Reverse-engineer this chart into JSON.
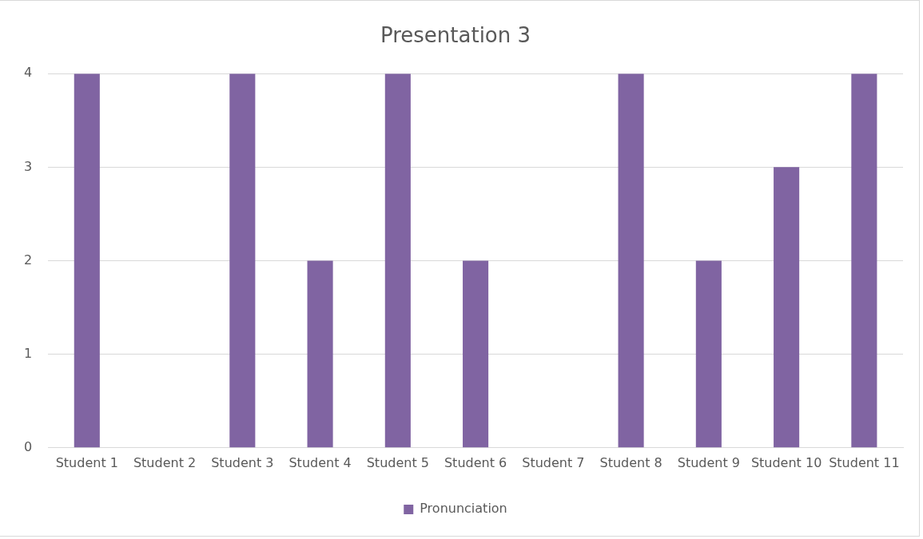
{
  "chart_data": {
    "type": "bar",
    "title": "Presentation 3",
    "categories": [
      "Student 1",
      "Student 2",
      "Student 3",
      "Student 4",
      "Student 5",
      "Student 6",
      "Student 7",
      "Student 8",
      "Student 9",
      "Student 10",
      "Student 11"
    ],
    "series": [
      {
        "name": "Pronunciation",
        "color": "#8064a2",
        "values": [
          4,
          0,
          4,
          2,
          4,
          2,
          0,
          4,
          2,
          3,
          4
        ]
      }
    ],
    "ylim": [
      0,
      4
    ],
    "yticks": [
      0,
      1,
      2,
      3,
      4
    ],
    "grid": "y",
    "legend": "bottom"
  }
}
